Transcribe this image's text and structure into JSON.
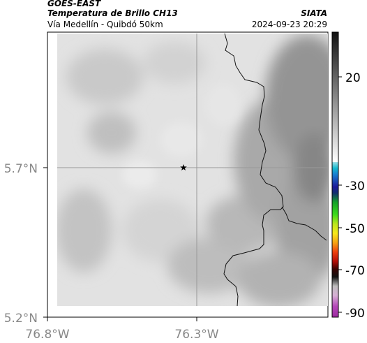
{
  "header": {
    "satellite": "GOES-EAST",
    "product": "Temperatura de Brillo CH13",
    "region": "Vía Medellín - Quibdó 50km",
    "agency": "SIATA",
    "datetime": "2024-09-23 20:29"
  },
  "axes": {
    "lat_ticks": [
      "5.7°N",
      "5.2°N"
    ],
    "lon_ticks": [
      "76.8°W",
      "76.3°W"
    ]
  },
  "colorbar": {
    "ticks": [
      "20",
      "-30",
      "-50",
      "-70",
      "-90"
    ]
  },
  "map": {
    "marker": "star-icon",
    "land_color": "#e2e2e2",
    "cloud_color": "#9a9a9a"
  }
}
